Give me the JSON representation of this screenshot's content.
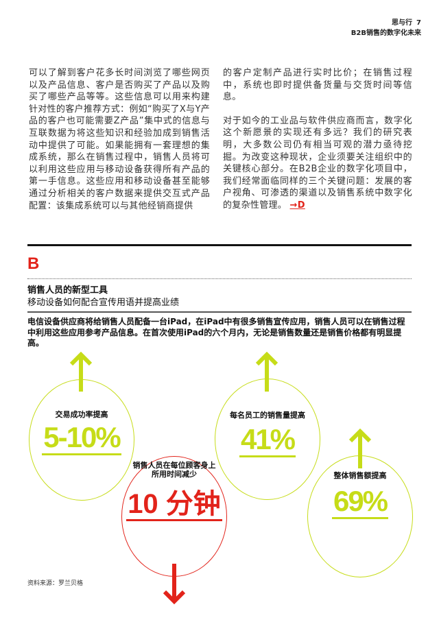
{
  "header": {
    "title": "思与行",
    "page_number": "7",
    "subtitle": "B2B销售的数字化未来"
  },
  "body": {
    "left_paragraph": "可以了解到客户花多长时间浏览了哪些网页以及产品信息、客户是否购买了产品以及购买了哪些产品等等。这些信息可以用来构建针对性的客户推荐方式：例如“购买了X与Y产品的客户也可能需要Z产品”集中式的信息与互联数据为将这些知识和经验加成到销售活动中提供了可能。如果能拥有一套理想的集成系统，那么在销售过程中，销售人员将可以利用这些应用与移动设备获得所有产品的第一手信息。这些应用和移动设备甚至能够通过分析相关的客户数据来提供交互式产品配置：该集成系统可以与其他经销商提供",
    "right_paragraph_1": "的客户定制产品进行实时比价；在销售过程中，系统也即时提供备货量与交货时间等信息。",
    "right_paragraph_2": "对于如今的工业品与软件供应商而言，数字化这个新愿景的实现还有多远？我们的研究表明，大多数公司仍有相当可观的潜力亟待挖掘。为改变这种现状，企业须要关注组织中的关键核心部分。在B2B企业的数字化项目中，我们经常面临同样的三个关键问题：发展的客户视角、可渗透的渠道以及销售系统中数字化的复杂性管理。",
    "cross_ref": "→D"
  },
  "section": {
    "letter": "B",
    "title": "销售人员的新型工具",
    "subtitle": "移动设备如何配合宣传用语并提高业绩",
    "intro": "电信设备供应商将给销售人员配备一台iPad，在iPad中有很多销售宣传应用，销售人员可以在销售过程中利用这些应用参考产品信息。在首次使用iPad的六个月内，无论是销售数量还是销售价格都有明显提高。",
    "stats": [
      {
        "label": "交易成功率提高",
        "value": "5-10%",
        "direction": "up",
        "color": "#c6dc18"
      },
      {
        "label": "销售人员在每位顾客身上所用时间减少",
        "value": "10 分钟",
        "direction": "down",
        "color": "#e2231a"
      },
      {
        "label": "每名员工的销售量提高",
        "value": "41%",
        "direction": "up",
        "color": "#c6dc18"
      },
      {
        "label": "整体销售额提高",
        "value": "69%",
        "direction": "up",
        "color": "#c6dc18"
      }
    ],
    "source": "资料来源：罗兰贝格"
  }
}
